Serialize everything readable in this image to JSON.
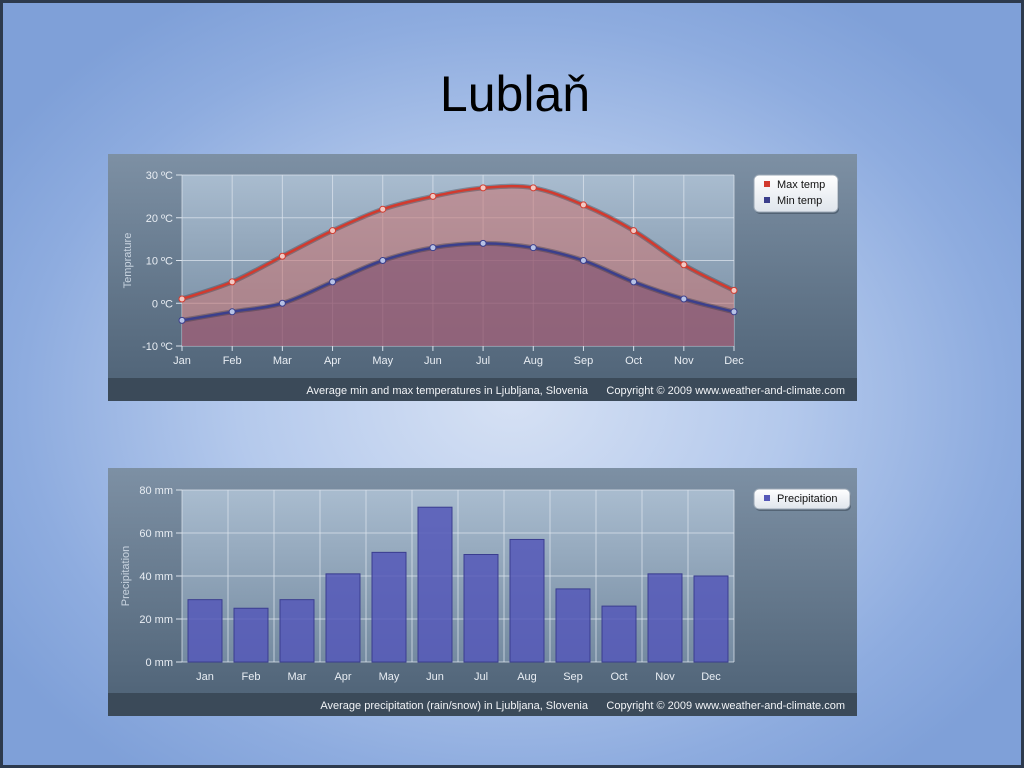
{
  "slide": {
    "title": "Lublaň"
  },
  "chart_data": [
    {
      "type": "area",
      "categories": [
        "Jan",
        "Feb",
        "Mar",
        "Apr",
        "May",
        "Jun",
        "Jul",
        "Aug",
        "Sep",
        "Oct",
        "Nov",
        "Dec"
      ],
      "series": [
        {
          "name": "Max temp",
          "values": [
            1,
            5,
            11,
            17,
            22,
            25,
            27,
            27,
            23,
            17,
            9,
            3
          ],
          "color": "#d23a2e"
        },
        {
          "name": "Min temp",
          "values": [
            -4,
            -2,
            0,
            5,
            10,
            13,
            14,
            13,
            10,
            5,
            1,
            -2
          ],
          "color": "#3b3f8c"
        }
      ],
      "ylabel": "Temprature",
      "ylim": [
        -10,
        30
      ],
      "yticks": [
        "-10 ºC",
        "0 ºC",
        "10 ºC",
        "20 ºC",
        "30 ºC"
      ],
      "grid": true,
      "legend": "top-right",
      "caption": "Average min and max temperatures in Ljubljana, Slovenia",
      "copyright": "Copyright © 2009 www.weather-and-climate.com"
    },
    {
      "type": "bar",
      "categories": [
        "Jan",
        "Feb",
        "Mar",
        "Apr",
        "May",
        "Jun",
        "Jul",
        "Aug",
        "Sep",
        "Oct",
        "Nov",
        "Dec"
      ],
      "series": [
        {
          "name": "Precipitation",
          "values": [
            29,
            25,
            29,
            41,
            51,
            72,
            50,
            57,
            34,
            26,
            41,
            40
          ],
          "color": "#5558b8"
        }
      ],
      "ylabel": "Precipitation",
      "ylim": [
        0,
        80
      ],
      "yticks": [
        "0 mm",
        "20 mm",
        "40 mm",
        "60 mm",
        "80 mm"
      ],
      "grid": true,
      "legend": "top-right",
      "caption": "Average precipitation (rain/snow) in Ljubljana, Slovenia",
      "copyright": "Copyright © 2009 www.weather-and-climate.com"
    }
  ]
}
